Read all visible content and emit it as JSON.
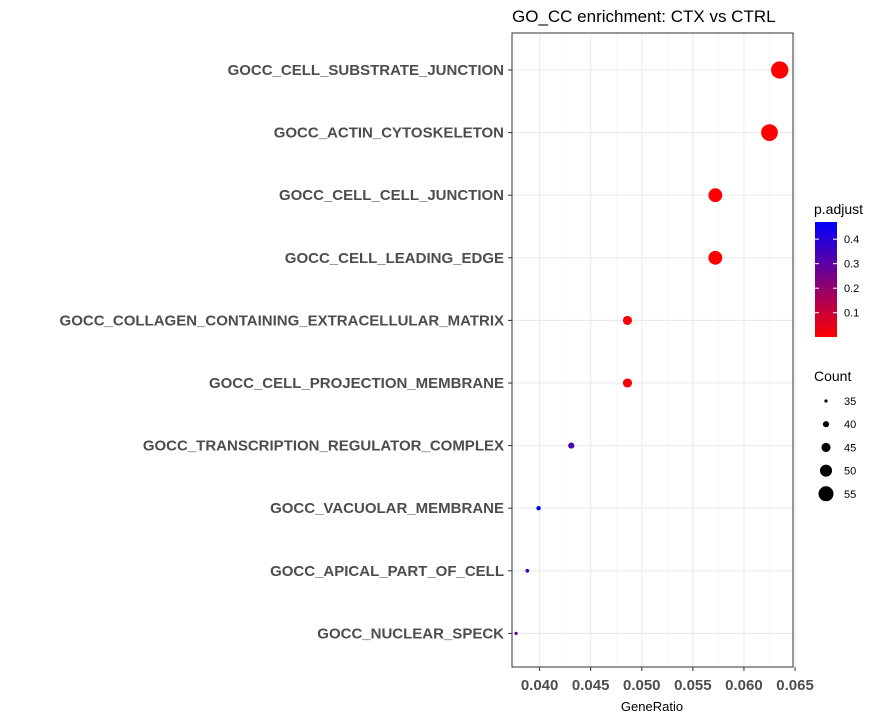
{
  "chart_data": {
    "type": "scatter",
    "title": "GO_CC enrichment: CTX vs CTRL",
    "xlabel": "GeneRatio",
    "ylabel": "",
    "xlim": [
      0.0373,
      0.0648
    ],
    "xticks": [
      0.04,
      0.045,
      0.05,
      0.055,
      0.06,
      0.065
    ],
    "xtick_labels": [
      "0.040",
      "0.045",
      "0.050",
      "0.055",
      "0.060",
      "0.065"
    ],
    "grid": true,
    "categories": [
      "GOCC_CELL_SUBSTRATE_JUNCTION",
      "GOCC_ACTIN_CYTOSKELETON",
      "GOCC_CELL_CELL_JUNCTION",
      "GOCC_CELL_LEADING_EDGE",
      "GOCC_COLLAGEN_CONTAINING_EXTRACELLULAR_MATRIX",
      "GOCC_CELL_PROJECTION_MEMBRANE",
      "GOCC_TRANSCRIPTION_REGULATOR_COMPLEX",
      "GOCC_VACUOLAR_MEMBRANE",
      "GOCC_APICAL_PART_OF_CELL",
      "GOCC_NUCLEAR_SPECK"
    ],
    "points": [
      {
        "term": "GOCC_CELL_SUBSTRATE_JUNCTION",
        "gene_ratio": 0.0635,
        "count": 59,
        "p_adjust": 0.001
      },
      {
        "term": "GOCC_ACTIN_CYTOSKELETON",
        "gene_ratio": 0.0625,
        "count": 58,
        "p_adjust": 0.001
      },
      {
        "term": "GOCC_CELL_CELL_JUNCTION",
        "gene_ratio": 0.0572,
        "count": 53,
        "p_adjust": 0.003
      },
      {
        "term": "GOCC_CELL_LEADING_EDGE",
        "gene_ratio": 0.0572,
        "count": 53,
        "p_adjust": 0.004
      },
      {
        "term": "GOCC_COLLAGEN_CONTAINING_EXTRACELLULAR_MATRIX",
        "gene_ratio": 0.0486,
        "count": 45,
        "p_adjust": 0.01
      },
      {
        "term": "GOCC_CELL_PROJECTION_MEMBRANE",
        "gene_ratio": 0.0486,
        "count": 45,
        "p_adjust": 0.01
      },
      {
        "term": "GOCC_TRANSCRIPTION_REGULATOR_COMPLEX",
        "gene_ratio": 0.0431,
        "count": 40,
        "p_adjust": 0.33
      },
      {
        "term": "GOCC_VACUOLAR_MEMBRANE",
        "gene_ratio": 0.0399,
        "count": 37,
        "p_adjust": 0.47
      },
      {
        "term": "GOCC_APICAL_PART_OF_CELL",
        "gene_ratio": 0.0388,
        "count": 36,
        "p_adjust": 0.34
      },
      {
        "term": "GOCC_NUCLEAR_SPECK",
        "gene_ratio": 0.0377,
        "count": 35,
        "p_adjust": 0.3
      }
    ],
    "color_legend": {
      "title": "p.adjust",
      "ticks": [
        0.1,
        0.2,
        0.3,
        0.4
      ],
      "tick_labels": [
        "0.1",
        "0.2",
        "0.3",
        "0.4"
      ],
      "range": [
        0.001,
        0.47
      ],
      "low_color": "#ff0000",
      "high_color": "#0000ff"
    },
    "size_legend": {
      "title": "Count",
      "values": [
        35,
        40,
        45,
        50,
        55
      ],
      "labels": [
        "35",
        "40",
        "45",
        "50",
        "55"
      ]
    },
    "legend_position": "right"
  }
}
